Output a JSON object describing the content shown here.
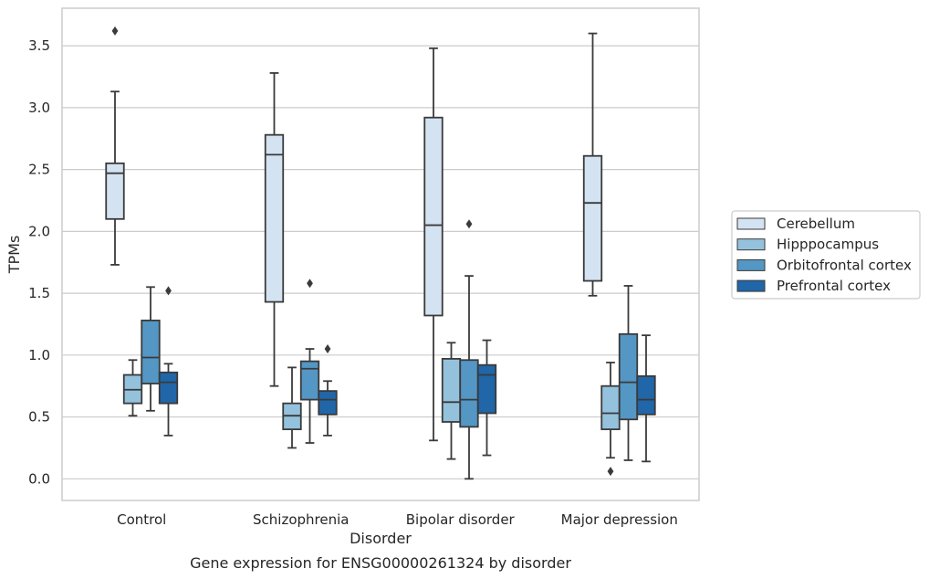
{
  "chart_data": {
    "type": "box",
    "caption": "Gene expression for ENSG00000261324 by disorder",
    "xlabel": "Disorder",
    "ylabel": "TPMs",
    "ylim": [
      -0.17,
      3.8
    ],
    "yticks": [
      "0.0",
      "0.5",
      "1.0",
      "1.5",
      "2.0",
      "2.5",
      "3.0",
      "3.5"
    ],
    "ytick_values": [
      0,
      0.5,
      1.0,
      1.5,
      2.0,
      2.5,
      3.0,
      3.5
    ],
    "grid": true,
    "legend_position": "right",
    "categories": [
      "Control",
      "Schizophrenia",
      "Bipolar disorder",
      "Major depression"
    ],
    "series": [
      {
        "name": "Cerebellum",
        "color": "#d4e3f2",
        "boxes": [
          {
            "whisker_low": 1.73,
            "q1": 2.1,
            "median": 2.47,
            "q3": 2.55,
            "whisker_high": 3.13,
            "outliers": [
              3.62
            ]
          },
          {
            "whisker_low": 0.75,
            "q1": 1.43,
            "median": 2.62,
            "q3": 2.78,
            "whisker_high": 3.28,
            "outliers": []
          },
          {
            "whisker_low": 0.31,
            "q1": 1.32,
            "median": 2.05,
            "q3": 2.92,
            "whisker_high": 3.48,
            "outliers": []
          },
          {
            "whisker_low": 1.48,
            "q1": 1.6,
            "median": 2.23,
            "q3": 2.61,
            "whisker_high": 3.6,
            "outliers": []
          }
        ]
      },
      {
        "name": "Hipppocampus",
        "color": "#94c2dd",
        "boxes": [
          {
            "whisker_low": 0.51,
            "q1": 0.61,
            "median": 0.72,
            "q3": 0.84,
            "whisker_high": 0.96,
            "outliers": []
          },
          {
            "whisker_low": 0.25,
            "q1": 0.4,
            "median": 0.51,
            "q3": 0.61,
            "whisker_high": 0.9,
            "outliers": []
          },
          {
            "whisker_low": 0.16,
            "q1": 0.46,
            "median": 0.62,
            "q3": 0.97,
            "whisker_high": 1.1,
            "outliers": []
          },
          {
            "whisker_low": 0.17,
            "q1": 0.4,
            "median": 0.53,
            "q3": 0.75,
            "whisker_high": 0.94,
            "outliers": [
              0.06
            ]
          }
        ]
      },
      {
        "name": "Orbitofrontal cortex",
        "color": "#5496c4",
        "boxes": [
          {
            "whisker_low": 0.55,
            "q1": 0.77,
            "median": 0.98,
            "q3": 1.28,
            "whisker_high": 1.55,
            "outliers": []
          },
          {
            "whisker_low": 0.29,
            "q1": 0.64,
            "median": 0.89,
            "q3": 0.95,
            "whisker_high": 1.05,
            "outliers": [
              1.58
            ]
          },
          {
            "whisker_low": 0.0,
            "q1": 0.42,
            "median": 0.64,
            "q3": 0.96,
            "whisker_high": 1.64,
            "outliers": [
              2.06
            ]
          },
          {
            "whisker_low": 0.15,
            "q1": 0.48,
            "median": 0.78,
            "q3": 1.17,
            "whisker_high": 1.56,
            "outliers": []
          }
        ]
      },
      {
        "name": "Prefrontal cortex",
        "color": "#2066a8",
        "boxes": [
          {
            "whisker_low": 0.35,
            "q1": 0.61,
            "median": 0.78,
            "q3": 0.86,
            "whisker_high": 0.93,
            "outliers": [
              1.52
            ]
          },
          {
            "whisker_low": 0.35,
            "q1": 0.52,
            "median": 0.64,
            "q3": 0.71,
            "whisker_high": 0.79,
            "outliers": [
              1.05
            ]
          },
          {
            "whisker_low": 0.19,
            "q1": 0.53,
            "median": 0.84,
            "q3": 0.92,
            "whisker_high": 1.12,
            "outliers": []
          },
          {
            "whisker_low": 0.14,
            "q1": 0.52,
            "median": 0.64,
            "q3": 0.83,
            "whisker_high": 1.16,
            "outliers": []
          }
        ]
      }
    ]
  }
}
